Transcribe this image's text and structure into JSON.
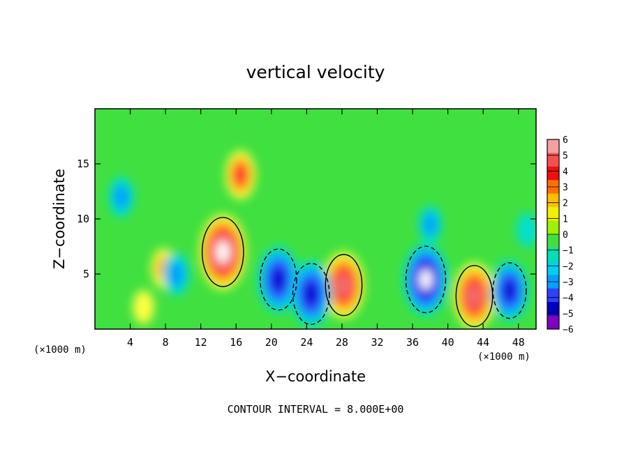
{
  "chart_data": {
    "type": "heatmap",
    "title": "vertical velocity",
    "xlabel": "X−coordinate",
    "ylabel": "Z−coordinate",
    "x_unit_label_left": "(×1000 m)",
    "x_unit_label_right": "(×1000 m)",
    "xlim": [
      0,
      50
    ],
    "ylim": [
      0,
      20
    ],
    "x_ticks": [
      4,
      8,
      12,
      16,
      20,
      24,
      28,
      32,
      36,
      40,
      44,
      48
    ],
    "y_ticks": [
      5,
      10,
      15
    ],
    "colorbar": {
      "ticks": [
        "6",
        "5",
        "4",
        "3",
        "2",
        "1",
        "0",
        "−1",
        "−2",
        "−3",
        "−4",
        "−5",
        "−6"
      ],
      "range": [
        -6,
        6
      ],
      "colors": [
        "#f4a0a0",
        "#f55050",
        "#ee1010",
        "#ff7000",
        "#ffc000",
        "#f0f000",
        "#a0f000",
        "#40e040",
        "#00e0b0",
        "#00d0f0",
        "#00a0ff",
        "#3040ff",
        "#0000c0",
        "#8000c0"
      ]
    },
    "footer": "CONTOUR INTERVAL =  8.000E+00",
    "features": [
      {
        "x": 14.5,
        "z": 7.0,
        "w": 9.5,
        "kind": "updraft"
      },
      {
        "x": 16.5,
        "z": 14.0,
        "w": 5.0,
        "kind": "updraft"
      },
      {
        "x": 28.2,
        "z": 4.0,
        "w": 8.0,
        "kind": "updraft"
      },
      {
        "x": 43.0,
        "z": 3.0,
        "w": 8.0,
        "kind": "updraft"
      },
      {
        "x": 7.8,
        "z": 5.5,
        "w": 3.5,
        "kind": "updraft"
      },
      {
        "x": 5.5,
        "z": 2.0,
        "w": 2.5,
        "kind": "updraft"
      },
      {
        "x": 20.8,
        "z": 4.5,
        "w": -8.0,
        "kind": "downdraft"
      },
      {
        "x": 24.5,
        "z": 3.2,
        "w": -8.0,
        "kind": "downdraft"
      },
      {
        "x": 37.5,
        "z": 4.5,
        "w": -9.0,
        "kind": "downdraft"
      },
      {
        "x": 47.0,
        "z": 3.5,
        "w": -7.0,
        "kind": "downdraft"
      },
      {
        "x": 9.2,
        "z": 5.0,
        "w": -4.0,
        "kind": "downdraft"
      },
      {
        "x": 3.0,
        "z": 12.0,
        "w": -3.5,
        "kind": "downdraft"
      },
      {
        "x": 38.0,
        "z": 9.5,
        "w": -3.0,
        "kind": "downdraft"
      },
      {
        "x": 49.0,
        "z": 9.0,
        "w": -2.5,
        "kind": "downdraft"
      }
    ]
  }
}
